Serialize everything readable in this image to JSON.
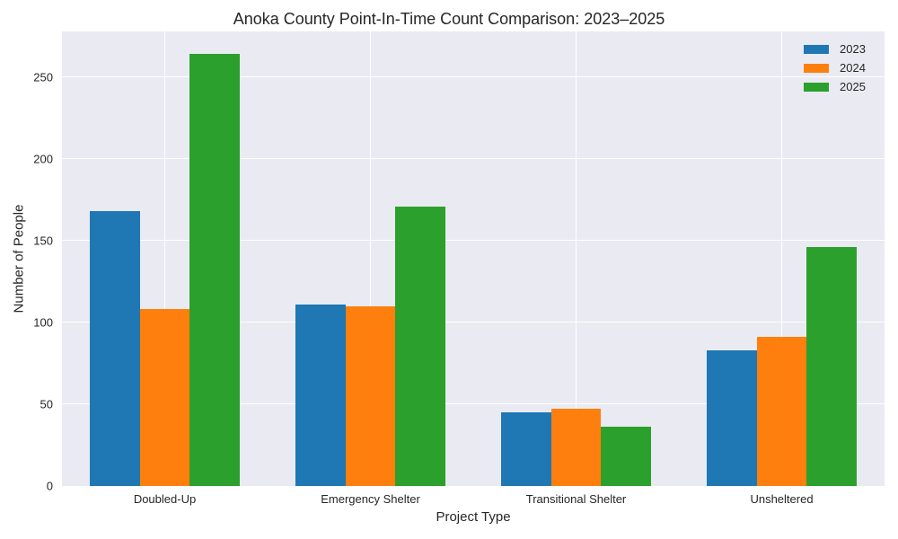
{
  "chart_data": {
    "type": "bar",
    "title": "Anoka County Point-In-Time Count Comparison: 2023–2025",
    "xlabel": "Project Type",
    "ylabel": "Number of People",
    "categories": [
      "Doubled-Up",
      "Emergency Shelter",
      "Transitional Shelter",
      "Unsheltered"
    ],
    "series": [
      {
        "name": "2023",
        "color": "#1f77b4",
        "values": [
          168,
          111,
          45,
          83
        ]
      },
      {
        "name": "2024",
        "color": "#ff7f0e",
        "values": [
          108,
          110,
          47,
          91
        ]
      },
      {
        "name": "2025",
        "color": "#2ca02c",
        "values": [
          264,
          171,
          36,
          146
        ]
      }
    ],
    "ylim": [
      0,
      278
    ],
    "yticks": [
      0,
      50,
      100,
      150,
      200,
      250
    ],
    "grid": true,
    "legend_position": "upper right",
    "background": "#eaeaf2"
  }
}
